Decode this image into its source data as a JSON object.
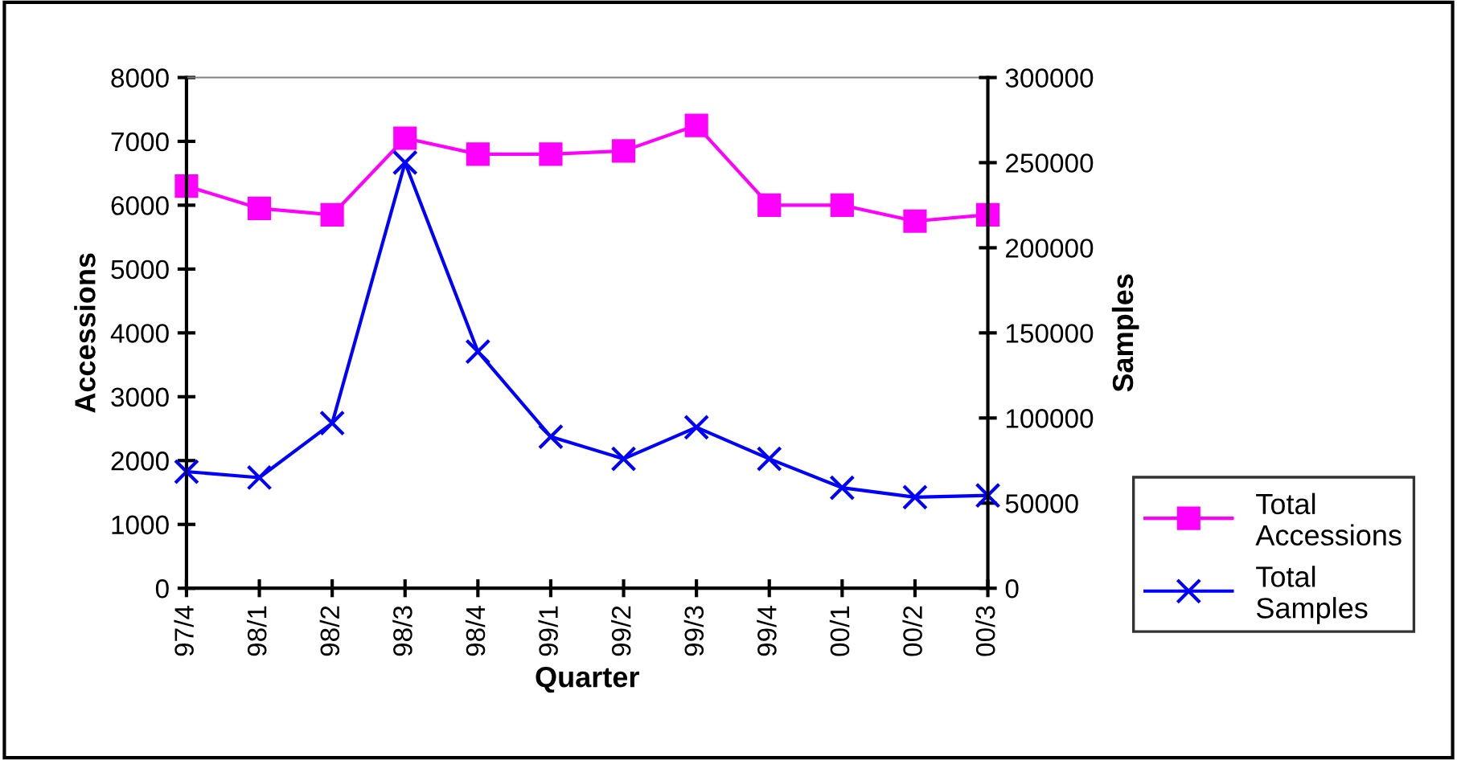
{
  "chart_data": {
    "type": "line",
    "xlabel": "Quarter",
    "ylabel": "Accessions",
    "y2label": "Samples",
    "categories": [
      "97/4",
      "98/1",
      "98/2",
      "98/3",
      "98/4",
      "99/1",
      "99/2",
      "99/3",
      "99/4",
      "00/1",
      "00/2",
      "00/3"
    ],
    "series": [
      {
        "name": "Total Accessions",
        "color": "#ff00ff",
        "marker": "square",
        "values": [
          6300,
          5950,
          5850,
          7050,
          6800,
          6800,
          6850,
          7250,
          6000,
          6000,
          5750,
          5850
        ]
      },
      {
        "name": "Total Samples",
        "color": "#0000ff",
        "marker": "cross",
        "axis": "y2",
        "values": [
          68500,
          65000,
          97000,
          250000,
          139000,
          89000,
          76000,
          94500,
          76000,
          59000,
          53500,
          54500
        ]
      }
    ],
    "ylim": [
      0,
      8000
    ],
    "yticks": [
      0,
      1000,
      2000,
      3000,
      4000,
      5000,
      6000,
      7000,
      8000
    ],
    "y2lim": [
      0,
      300000
    ],
    "y2ticks": [
      0,
      50000,
      100000,
      150000,
      200000,
      250000,
      300000
    ],
    "grid": false,
    "legend": "bottom right"
  }
}
